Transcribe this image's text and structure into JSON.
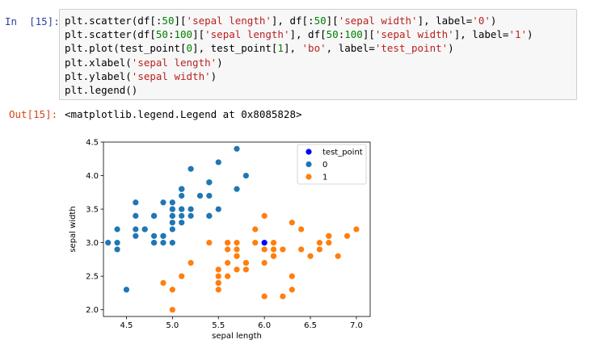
{
  "input_prompt": "In  [15]:",
  "output_prompt": "Out[15]:",
  "code_lines": [
    [
      {
        "t": "plt.scatter(df[:"
      },
      {
        "t": "50",
        "c": "num"
      },
      {
        "t": "]["
      },
      {
        "t": "'sepal length'",
        "c": "str"
      },
      {
        "t": "], df[:"
      },
      {
        "t": "50",
        "c": "num"
      },
      {
        "t": "]["
      },
      {
        "t": "'sepal width'",
        "c": "str"
      },
      {
        "t": "], label="
      },
      {
        "t": "'0'",
        "c": "str"
      },
      {
        "t": ")"
      }
    ],
    [
      {
        "t": "plt.scatter(df["
      },
      {
        "t": "50",
        "c": "num"
      },
      {
        "t": ":"
      },
      {
        "t": "100",
        "c": "num"
      },
      {
        "t": "]["
      },
      {
        "t": "'sepal length'",
        "c": "str"
      },
      {
        "t": "], df["
      },
      {
        "t": "50",
        "c": "num"
      },
      {
        "t": ":"
      },
      {
        "t": "100",
        "c": "num"
      },
      {
        "t": "]["
      },
      {
        "t": "'sepal width'",
        "c": "str"
      },
      {
        "t": "], label="
      },
      {
        "t": "'1'",
        "c": "str"
      },
      {
        "t": ")"
      }
    ],
    [
      {
        "t": "plt.plot(test_point["
      },
      {
        "t": "0",
        "c": "num"
      },
      {
        "t": "], test_point["
      },
      {
        "t": "1",
        "c": "num"
      },
      {
        "t": "], "
      },
      {
        "t": "'bo'",
        "c": "str"
      },
      {
        "t": ", label="
      },
      {
        "t": "'test_point'",
        "c": "str"
      },
      {
        "t": ")"
      }
    ],
    [
      {
        "t": "plt.xlabel("
      },
      {
        "t": "'sepal length'",
        "c": "str"
      },
      {
        "t": ")"
      }
    ],
    [
      {
        "t": "plt.ylabel("
      },
      {
        "t": "'sepal width'",
        "c": "str"
      },
      {
        "t": ")"
      }
    ],
    [
      {
        "t": "plt.legend()"
      }
    ]
  ],
  "output_text": "<matplotlib.legend.Legend at 0x8085828>",
  "chart_data": {
    "type": "scatter",
    "xlabel": "sepal length",
    "ylabel": "sepal width",
    "xlim": [
      4.25,
      7.15
    ],
    "ylim": [
      1.9,
      4.5
    ],
    "xticks": [
      4.5,
      5.0,
      5.5,
      6.0,
      6.5,
      7.0
    ],
    "xtick_labels": [
      "4.5",
      "5.0",
      "5.5",
      "6.0",
      "6.5",
      "7.0"
    ],
    "yticks": [
      2.0,
      2.5,
      3.0,
      3.5,
      4.0,
      4.5
    ],
    "ytick_labels": [
      "2.0",
      "2.5",
      "3.0",
      "3.5",
      "4.0",
      "4.5"
    ],
    "grid": false,
    "legend_position": "top-right",
    "legend": [
      {
        "label": "test_point",
        "color": "#0000ff"
      },
      {
        "label": "0",
        "color": "#1f77b4"
      },
      {
        "label": "1",
        "color": "#ff7f0e"
      }
    ],
    "series": [
      {
        "name": "0",
        "color": "#1f77b4",
        "points": [
          [
            5.1,
            3.5
          ],
          [
            4.9,
            3.0
          ],
          [
            4.7,
            3.2
          ],
          [
            4.6,
            3.1
          ],
          [
            5.0,
            3.6
          ],
          [
            5.4,
            3.9
          ],
          [
            4.6,
            3.4
          ],
          [
            5.0,
            3.4
          ],
          [
            4.4,
            2.9
          ],
          [
            4.9,
            3.1
          ],
          [
            5.4,
            3.7
          ],
          [
            4.8,
            3.4
          ],
          [
            4.8,
            3.0
          ],
          [
            4.3,
            3.0
          ],
          [
            5.8,
            4.0
          ],
          [
            5.7,
            4.4
          ],
          [
            5.4,
            3.9
          ],
          [
            5.1,
            3.5
          ],
          [
            5.7,
            3.8
          ],
          [
            5.1,
            3.8
          ],
          [
            5.4,
            3.4
          ],
          [
            5.1,
            3.7
          ],
          [
            4.6,
            3.6
          ],
          [
            5.1,
            3.3
          ],
          [
            4.8,
            3.4
          ],
          [
            5.0,
            3.0
          ],
          [
            5.0,
            3.4
          ],
          [
            5.2,
            3.5
          ],
          [
            5.2,
            3.4
          ],
          [
            4.7,
            3.2
          ],
          [
            4.8,
            3.1
          ],
          [
            5.4,
            3.4
          ],
          [
            5.2,
            4.1
          ],
          [
            5.5,
            4.2
          ],
          [
            4.9,
            3.1
          ],
          [
            5.0,
            3.2
          ],
          [
            5.5,
            3.5
          ],
          [
            4.9,
            3.6
          ],
          [
            4.4,
            3.0
          ],
          [
            5.1,
            3.4
          ],
          [
            5.0,
            3.5
          ],
          [
            4.5,
            2.3
          ],
          [
            4.4,
            3.2
          ],
          [
            5.0,
            3.5
          ],
          [
            5.1,
            3.8
          ],
          [
            4.8,
            3.0
          ],
          [
            5.1,
            3.8
          ],
          [
            4.6,
            3.2
          ],
          [
            5.3,
            3.7
          ],
          [
            5.0,
            3.3
          ]
        ]
      },
      {
        "name": "1",
        "color": "#ff7f0e",
        "points": [
          [
            7.0,
            3.2
          ],
          [
            6.4,
            3.2
          ],
          [
            6.9,
            3.1
          ],
          [
            5.5,
            2.3
          ],
          [
            6.5,
            2.8
          ],
          [
            5.7,
            2.8
          ],
          [
            6.3,
            3.3
          ],
          [
            4.9,
            2.4
          ],
          [
            6.6,
            2.9
          ],
          [
            5.2,
            2.7
          ],
          [
            5.0,
            2.0
          ],
          [
            5.9,
            3.0
          ],
          [
            6.0,
            2.2
          ],
          [
            6.1,
            2.9
          ],
          [
            5.6,
            2.9
          ],
          [
            6.7,
            3.1
          ],
          [
            5.6,
            3.0
          ],
          [
            5.8,
            2.7
          ],
          [
            6.2,
            2.2
          ],
          [
            5.6,
            2.5
          ],
          [
            5.9,
            3.2
          ],
          [
            6.1,
            2.8
          ],
          [
            6.3,
            2.5
          ],
          [
            6.1,
            2.8
          ],
          [
            6.4,
            2.9
          ],
          [
            6.6,
            3.0
          ],
          [
            6.8,
            2.8
          ],
          [
            6.7,
            3.0
          ],
          [
            6.0,
            2.9
          ],
          [
            5.7,
            2.6
          ],
          [
            5.5,
            2.4
          ],
          [
            5.5,
            2.4
          ],
          [
            5.8,
            2.7
          ],
          [
            6.0,
            2.7
          ],
          [
            5.4,
            3.0
          ],
          [
            6.0,
            3.4
          ],
          [
            6.7,
            3.1
          ],
          [
            6.3,
            2.3
          ],
          [
            5.6,
            3.0
          ],
          [
            5.5,
            2.5
          ],
          [
            5.5,
            2.6
          ],
          [
            6.1,
            3.0
          ],
          [
            5.8,
            2.6
          ],
          [
            5.0,
            2.3
          ],
          [
            5.6,
            2.7
          ],
          [
            5.7,
            3.0
          ],
          [
            5.7,
            2.9
          ],
          [
            6.2,
            2.9
          ],
          [
            5.1,
            2.5
          ],
          [
            5.7,
            2.8
          ]
        ]
      },
      {
        "name": "test_point",
        "color": "#0000ff",
        "points": [
          [
            6.0,
            3.0
          ]
        ]
      }
    ]
  }
}
